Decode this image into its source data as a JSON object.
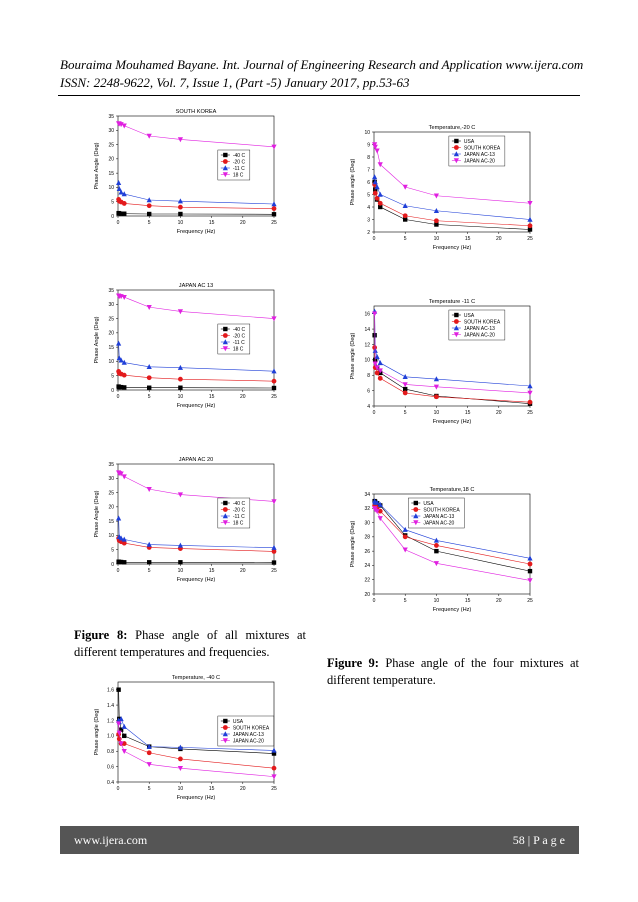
{
  "header": {
    "line1": "Bouraima Mouhamed Bayane. Int. Journal of Engineering Research and Application www.ijera.com",
    "line2": "ISSN: 2248-9622, Vol. 7, Issue 1, (Part -5) January 2017, pp.53-63"
  },
  "captions": {
    "fig8_label": "Figure 8:",
    "fig8_text": " Phase angle of all mixtures at different temperatures and frequencies.",
    "fig9_label": "Figure 9:",
    "fig9_text": " Phase angle of the four mixtures at different temperature."
  },
  "footer": {
    "url": "www.ijera.com",
    "page": "58 | P a g e"
  },
  "chart_data": [
    {
      "type": "line",
      "title": "SOUTH KOREA",
      "xlabel": "Frequency (Hz)",
      "ylabel": "Phase Angle (Deg)",
      "xlim": [
        0,
        25
      ],
      "ylim": [
        0,
        35
      ],
      "xticks": [
        0,
        5,
        10,
        15,
        20,
        25
      ],
      "yticks": [
        0,
        5,
        10,
        15,
        20,
        25,
        30,
        35
      ],
      "x": [
        0.1,
        0.2,
        0.5,
        1,
        5,
        10,
        25
      ],
      "legend_position": "center-right",
      "series": [
        {
          "name": "-40 C",
          "color": "#000000",
          "marker": "square",
          "values": [
            1.0,
            0.9,
            0.8,
            0.8,
            0.7,
            0.7,
            0.6
          ]
        },
        {
          "name": "-20 C",
          "color": "#e31a1c",
          "marker": "circle",
          "values": [
            5.8,
            5.2,
            4.9,
            4.4,
            3.6,
            3.1,
            2.6
          ]
        },
        {
          "name": "-11 C",
          "color": "#1f3fd8",
          "marker": "triangle-up",
          "values": [
            11.6,
            9.5,
            8.3,
            7.7,
            5.6,
            5.2,
            4.2
          ]
        },
        {
          "name": "18 C",
          "color": "#e020e0",
          "marker": "triangle-down",
          "values": [
            32.4,
            32.3,
            32.1,
            31.6,
            28.0,
            26.8,
            24.2
          ]
        }
      ]
    },
    {
      "type": "line",
      "title": "JAPAN AC 13",
      "xlabel": "Frequency (Hz)",
      "ylabel": "Phase Angle (Deg)",
      "xlim": [
        0,
        25
      ],
      "ylim": [
        0,
        35
      ],
      "xticks": [
        0,
        5,
        10,
        15,
        20,
        25
      ],
      "yticks": [
        0,
        5,
        10,
        15,
        20,
        25,
        30,
        35
      ],
      "x": [
        0.1,
        0.2,
        0.5,
        1,
        5,
        10,
        25
      ],
      "legend_position": "center-right",
      "series": [
        {
          "name": "-40 C",
          "color": "#000000",
          "marker": "square",
          "values": [
            1.2,
            1.0,
            1.0,
            0.9,
            0.8,
            0.8,
            0.7
          ]
        },
        {
          "name": "-20 C",
          "color": "#e31a1c",
          "marker": "circle",
          "values": [
            6.5,
            5.8,
            5.6,
            5.2,
            4.3,
            3.8,
            3.1
          ]
        },
        {
          "name": "-11 C",
          "color": "#1f3fd8",
          "marker": "triangle-up",
          "values": [
            16.3,
            11.2,
            10.4,
            9.6,
            8.1,
            7.8,
            6.6
          ]
        },
        {
          "name": "18 C",
          "color": "#e020e0",
          "marker": "triangle-down",
          "values": [
            33.0,
            32.8,
            32.8,
            32.5,
            29.0,
            27.5,
            25.0
          ]
        }
      ]
    },
    {
      "type": "line",
      "title": "JAPAN AC 20",
      "xlabel": "Frequency (Hz)",
      "ylabel": "Phase Angle (Deg)",
      "xlim": [
        0,
        25
      ],
      "ylim": [
        0,
        35
      ],
      "xticks": [
        0,
        5,
        10,
        15,
        20,
        25
      ],
      "yticks": [
        0,
        5,
        10,
        15,
        20,
        25,
        30,
        35
      ],
      "x": [
        0.1,
        0.2,
        0.5,
        1,
        5,
        10,
        25
      ],
      "legend_position": "center-right",
      "series": [
        {
          "name": "-40 C",
          "color": "#000000",
          "marker": "square",
          "values": [
            0.8,
            0.7,
            0.7,
            0.6,
            0.6,
            0.6,
            0.5
          ]
        },
        {
          "name": "-20 C",
          "color": "#e31a1c",
          "marker": "circle",
          "values": [
            9.0,
            8.2,
            7.8,
            7.3,
            5.8,
            5.4,
            4.4
          ]
        },
        {
          "name": "-11 C",
          "color": "#1f3fd8",
          "marker": "triangle-up",
          "values": [
            16.0,
            9.5,
            9.0,
            8.6,
            6.8,
            6.5,
            5.7
          ]
        },
        {
          "name": "18 C",
          "color": "#e020e0",
          "marker": "triangle-down",
          "values": [
            32.0,
            31.8,
            31.6,
            30.6,
            26.2,
            24.3,
            21.9
          ]
        }
      ]
    },
    {
      "type": "line",
      "title": "Temperature, -40 C",
      "xlabel": "Frequency (Hz)",
      "ylabel": "Phase angle (Deg)",
      "xlim": [
        0,
        25
      ],
      "ylim": [
        0.4,
        1.7
      ],
      "xticks": [
        0,
        5,
        10,
        15,
        20,
        25
      ],
      "yticks": [
        0.4,
        0.6,
        0.8,
        1.0,
        1.2,
        1.4,
        1.6
      ],
      "ytick_labels": [
        "0.4",
        "0.6",
        "0.8",
        "1.0",
        "1.2",
        "1.4",
        "1.6"
      ],
      "x": [
        0.1,
        0.2,
        0.5,
        1,
        5,
        10,
        25
      ],
      "legend_position": "center-right",
      "series": [
        {
          "name": "USA",
          "color": "#000000",
          "marker": "square",
          "values": [
            1.6,
            1.22,
            1.08,
            1.0,
            0.86,
            0.83,
            0.77
          ]
        },
        {
          "name": "SOUTH KOREA",
          "color": "#e31a1c",
          "marker": "circle",
          "values": [
            1.02,
            0.96,
            0.9,
            0.9,
            0.78,
            0.7,
            0.58
          ]
        },
        {
          "name": "JAPAN AC-13",
          "color": "#1f3fd8",
          "marker": "triangle-up",
          "values": [
            1.2,
            1.18,
            1.22,
            1.12,
            0.86,
            0.85,
            0.81
          ]
        },
        {
          "name": "JAPAN AC-20",
          "color": "#e020e0",
          "marker": "triangle-down",
          "values": [
            1.16,
            1.04,
            0.9,
            0.8,
            0.63,
            0.58,
            0.47
          ]
        }
      ]
    },
    {
      "type": "line",
      "title": "Temperature,-20 C",
      "xlabel": "Frequency (Hz)",
      "ylabel": "Phase angle (Deg)",
      "xlim": [
        0,
        25
      ],
      "ylim": [
        2,
        10
      ],
      "xticks": [
        0,
        5,
        10,
        15,
        20,
        25
      ],
      "yticks": [
        2,
        3,
        4,
        5,
        6,
        7,
        8,
        9,
        10
      ],
      "x": [
        0.1,
        0.2,
        0.5,
        1,
        5,
        10,
        25
      ],
      "legend_position": "top-right",
      "series": [
        {
          "name": "USA",
          "color": "#000000",
          "marker": "square",
          "values": [
            6.0,
            5.4,
            4.6,
            4.0,
            3.0,
            2.6,
            2.2
          ]
        },
        {
          "name": "SOUTH KOREA",
          "color": "#e31a1c",
          "marker": "circle",
          "values": [
            5.8,
            5.1,
            4.7,
            4.3,
            3.3,
            2.9,
            2.5
          ]
        },
        {
          "name": "JAPAN AC-13",
          "color": "#1f3fd8",
          "marker": "triangle-up",
          "values": [
            6.4,
            6.0,
            5.6,
            5.0,
            4.1,
            3.7,
            3.0
          ]
        },
        {
          "name": "JAPAN AC-20",
          "color": "#e020e0",
          "marker": "triangle-down",
          "values": [
            9.0,
            8.8,
            8.5,
            7.4,
            5.6,
            4.9,
            4.3
          ]
        }
      ]
    },
    {
      "type": "line",
      "title": "Temperature -11 C",
      "xlabel": "Frequency (Hz)",
      "ylabel": "Phase angle (Deg)",
      "xlim": [
        0,
        25
      ],
      "ylim": [
        4,
        17
      ],
      "xticks": [
        0,
        5,
        10,
        15,
        20,
        25
      ],
      "yticks": [
        4,
        6,
        8,
        10,
        12,
        14,
        16
      ],
      "x": [
        0.1,
        0.2,
        0.5,
        1,
        5,
        10,
        25
      ],
      "legend_position": "top-right",
      "series": [
        {
          "name": "USA",
          "color": "#000000",
          "marker": "square",
          "values": [
            13.2,
            10.0,
            9.0,
            8.3,
            6.2,
            5.3,
            4.3
          ]
        },
        {
          "name": "SOUTH KOREA",
          "color": "#e31a1c",
          "marker": "circle",
          "values": [
            11.6,
            9.0,
            8.3,
            7.6,
            5.7,
            5.2,
            4.5
          ]
        },
        {
          "name": "JAPAN AC-13",
          "color": "#1f3fd8",
          "marker": "triangle-up",
          "values": [
            16.3,
            11.2,
            10.4,
            9.6,
            7.8,
            7.5,
            6.6
          ]
        },
        {
          "name": "JAPAN AC-20",
          "color": "#e020e0",
          "marker": "triangle-down",
          "values": [
            16.0,
            9.5,
            9.0,
            8.6,
            6.8,
            6.5,
            5.7
          ]
        }
      ]
    },
    {
      "type": "line",
      "title": "Temperature,18 C",
      "xlabel": "Frequency (Hz)",
      "ylabel": "Phase angle (Deg)",
      "xlim": [
        0,
        25
      ],
      "ylim": [
        20,
        34
      ],
      "xticks": [
        0,
        5,
        10,
        15,
        20,
        25
      ],
      "yticks": [
        20,
        22,
        24,
        26,
        28,
        30,
        32,
        34
      ],
      "x": [
        0.1,
        0.2,
        0.5,
        1,
        5,
        10,
        25
      ],
      "legend_position": "top-left",
      "series": [
        {
          "name": "USA",
          "color": "#000000",
          "marker": "square",
          "values": [
            33.0,
            32.9,
            32.7,
            32.4,
            28.2,
            26.0,
            23.2
          ]
        },
        {
          "name": "SOUTH KOREA",
          "color": "#e31a1c",
          "marker": "circle",
          "values": [
            32.4,
            32.3,
            32.1,
            31.6,
            28.0,
            26.8,
            24.2
          ]
        },
        {
          "name": "JAPAN AC-13",
          "color": "#1f3fd8",
          "marker": "triangle-up",
          "values": [
            33.0,
            32.8,
            32.8,
            32.5,
            29.0,
            27.5,
            25.0
          ]
        },
        {
          "name": "JAPAN AC-20",
          "color": "#e020e0",
          "marker": "triangle-down",
          "values": [
            32.0,
            31.8,
            31.6,
            30.6,
            26.2,
            24.3,
            21.9
          ]
        }
      ]
    }
  ]
}
